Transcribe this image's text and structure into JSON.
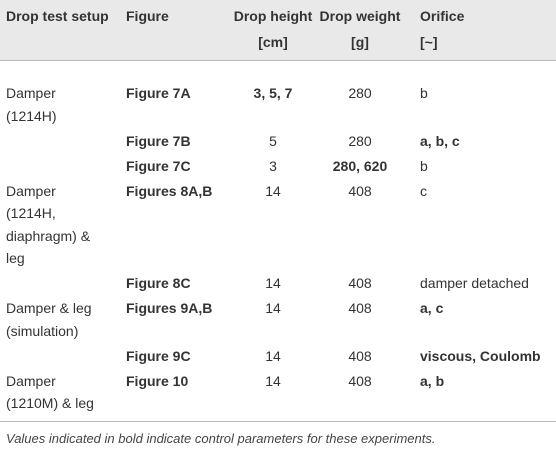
{
  "table": {
    "header": [
      {
        "lines": [
          "Drop test setup"
        ]
      },
      {
        "lines": [
          "Figure"
        ]
      },
      {
        "lines": [
          "Drop height",
          "[cm]"
        ]
      },
      {
        "lines": [
          "Drop weight",
          "[g]"
        ]
      },
      {
        "lines": [
          "Orifice",
          "[~]"
        ]
      }
    ],
    "rows": [
      [
        {
          "lines": [
            "Damper",
            "(1214H)"
          ]
        },
        {
          "lines": [
            "Figure 7A"
          ],
          "bold": true
        },
        {
          "lines": [
            "3, 5, 7"
          ],
          "bold": true
        },
        {
          "lines": [
            "280"
          ]
        },
        {
          "lines": [
            "b"
          ]
        }
      ],
      [
        null,
        {
          "lines": [
            "Figure 7B"
          ],
          "bold": true
        },
        {
          "lines": [
            "5"
          ]
        },
        {
          "lines": [
            "280"
          ]
        },
        {
          "lines": [
            "a, b, c"
          ],
          "bold": true
        }
      ],
      [
        null,
        {
          "lines": [
            "Figure 7C"
          ],
          "bold": true
        },
        {
          "lines": [
            "3"
          ]
        },
        {
          "lines": [
            "280, 620"
          ],
          "bold": true
        },
        {
          "lines": [
            "b"
          ]
        }
      ],
      [
        {
          "lines": [
            "Damper",
            "(1214H,",
            "diaphragm) &",
            "leg"
          ]
        },
        {
          "lines": [
            "Figures 8A,B"
          ],
          "bold": true
        },
        {
          "lines": [
            "14"
          ]
        },
        {
          "lines": [
            "408"
          ]
        },
        {
          "lines": [
            "c"
          ]
        }
      ],
      [
        null,
        {
          "lines": [
            "Figure 8C"
          ],
          "bold": true
        },
        {
          "lines": [
            "14"
          ]
        },
        {
          "lines": [
            "408"
          ]
        },
        {
          "lines": [
            "damper detached"
          ]
        }
      ],
      [
        {
          "lines": [
            "Damper & leg",
            "(simulation)"
          ]
        },
        {
          "lines": [
            "Figures 9A,B"
          ],
          "bold": true
        },
        {
          "lines": [
            "14"
          ]
        },
        {
          "lines": [
            "408"
          ]
        },
        {
          "lines": [
            "a, c"
          ],
          "bold": true
        }
      ],
      [
        null,
        {
          "lines": [
            "Figure 9C"
          ],
          "bold": true
        },
        {
          "lines": [
            "14"
          ]
        },
        {
          "lines": [
            "408"
          ]
        },
        {
          "lines": [
            "viscous, Coulomb"
          ],
          "bold": true
        }
      ],
      [
        {
          "lines": [
            "Damper",
            "(1210M) & leg"
          ]
        },
        {
          "lines": [
            "Figure 10"
          ],
          "bold": true
        },
        {
          "lines": [
            "14"
          ]
        },
        {
          "lines": [
            "408"
          ]
        },
        {
          "lines": [
            "a, b"
          ],
          "bold": true
        }
      ]
    ],
    "footnote": "Values indicated in bold indicate control parameters for these experiments."
  }
}
